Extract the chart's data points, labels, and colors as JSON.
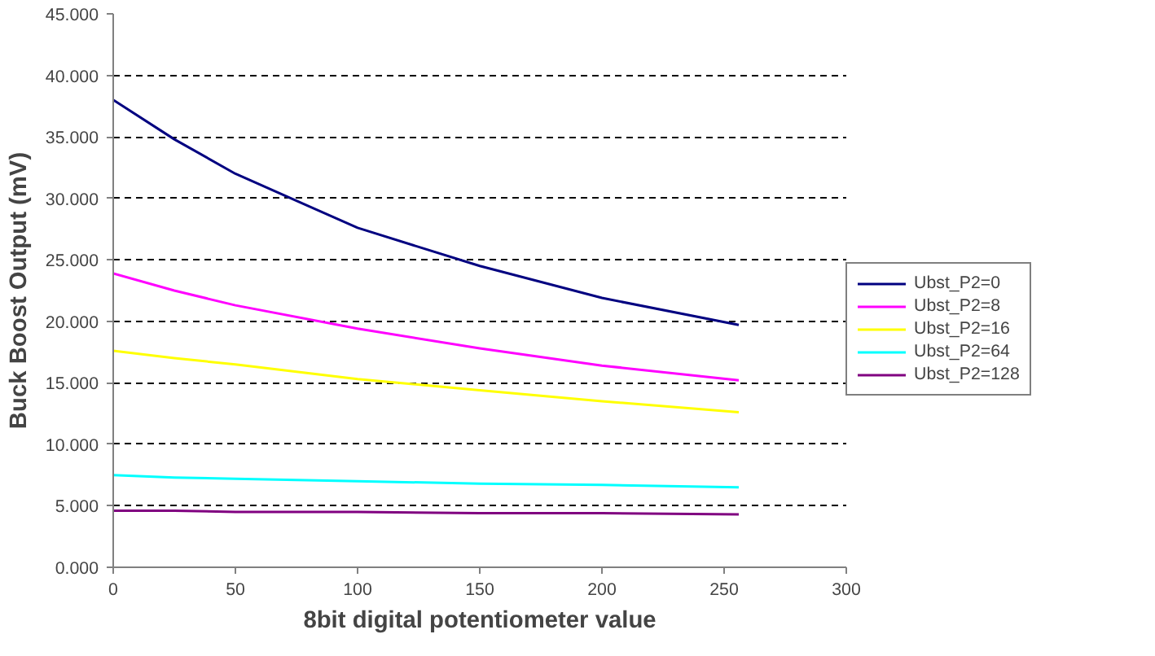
{
  "chart_data": {
    "type": "line",
    "xlabel": "8bit digital potentiometer value",
    "ylabel": "Buck Boost Output (mV)",
    "x": [
      0,
      25,
      50,
      100,
      150,
      200,
      256
    ],
    "series": [
      {
        "name": "Ubst_P2=0",
        "color": "#000080",
        "values": [
          38.0,
          34.8,
          32.0,
          27.6,
          24.5,
          21.9,
          19.7
        ]
      },
      {
        "name": "Ubst_P2=8",
        "color": "#ff00ff",
        "values": [
          23.9,
          22.5,
          21.3,
          19.4,
          17.8,
          16.4,
          15.2
        ]
      },
      {
        "name": "Ubst_P2=16",
        "color": "#ffff00",
        "values": [
          17.6,
          17.0,
          16.5,
          15.3,
          14.4,
          13.5,
          12.6
        ]
      },
      {
        "name": "Ubst_P2=64",
        "color": "#00ffff",
        "values": [
          7.5,
          7.3,
          7.2,
          7.0,
          6.8,
          6.7,
          6.5
        ]
      },
      {
        "name": "Ubst_P2=128",
        "color": "#800080",
        "values": [
          4.6,
          4.6,
          4.5,
          4.5,
          4.4,
          4.4,
          4.3
        ]
      }
    ],
    "xlim": [
      0,
      300
    ],
    "xticks": [
      0,
      50,
      100,
      150,
      200,
      250,
      300
    ],
    "ylim": [
      0,
      45
    ],
    "yticks": [
      {
        "value": 0,
        "label": "0.000"
      },
      {
        "value": 5,
        "label": "5.000"
      },
      {
        "value": 10,
        "label": "10.000"
      },
      {
        "value": 15,
        "label": "15.000"
      },
      {
        "value": 20,
        "label": "20.000"
      },
      {
        "value": 25,
        "label": "25.000"
      },
      {
        "value": 30,
        "label": "30.000"
      },
      {
        "value": 35,
        "label": "35.000"
      },
      {
        "value": 40,
        "label": "40.000"
      },
      {
        "value": 45,
        "label": "45.000"
      }
    ],
    "grid": "y",
    "legend": "right",
    "marker": "none",
    "line_style": "solid"
  }
}
